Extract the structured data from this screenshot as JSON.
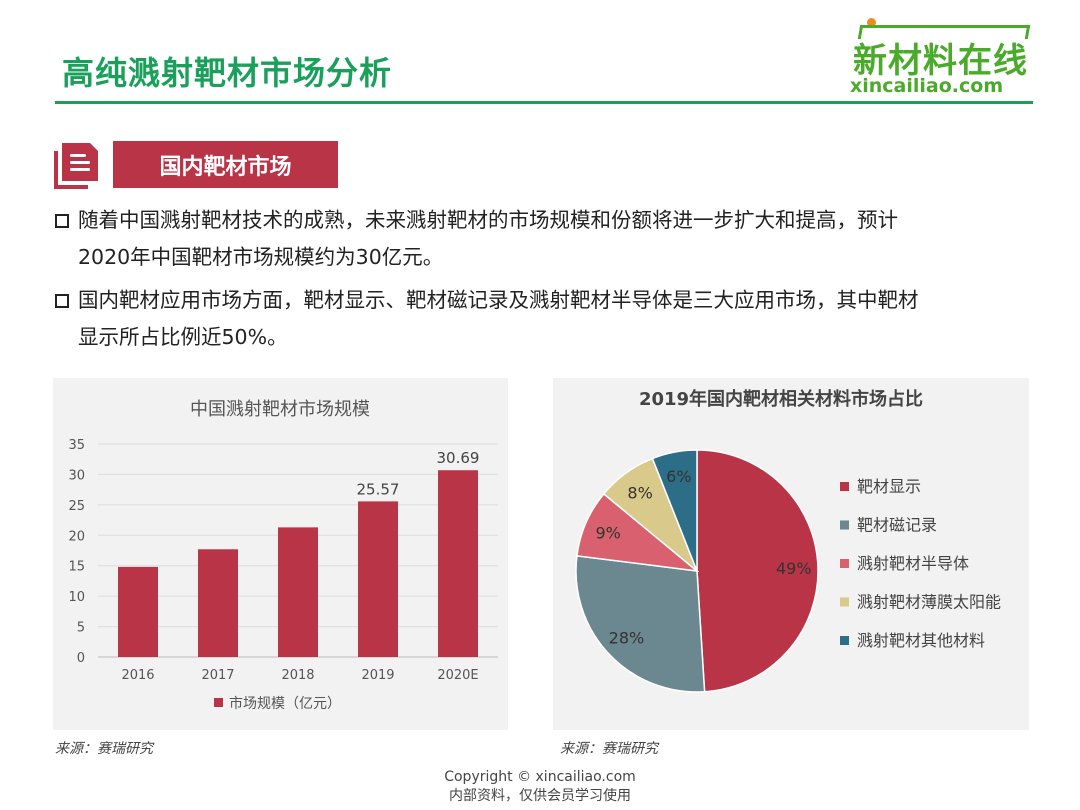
{
  "header": {
    "title": "高纯溅射靶材市场分析",
    "logo_cn": "新材料在线",
    "logo_en": "xincailiao.com"
  },
  "section": {
    "title": "国内靶材市场"
  },
  "bullets": [
    {
      "line1": "随着中国溅射靶材技术的成熟，未来溅射靶材的市场规模和份额将进一步扩大和提高，预计",
      "line2": "2020年中国靶材市场规模约为30亿元。"
    },
    {
      "line1": "国内靶材应用市场方面，靶材显示、靶材磁记录及溅射靶材半导体是三大应用市场，其中靶材",
      "line2": "显示所占比例近50%。"
    }
  ],
  "chart_data": [
    {
      "type": "bar",
      "title": "中国溅射靶材市场规模",
      "categories": [
        "2016",
        "2017",
        "2018",
        "2019",
        "2020E"
      ],
      "values": [
        14.8,
        17.7,
        21.3,
        25.57,
        30.69
      ],
      "data_labels": [
        "",
        "",
        "",
        "25.57",
        "30.69"
      ],
      "ylim": [
        0,
        35
      ],
      "yticks": [
        "0",
        "5",
        "10",
        "15",
        "20",
        "25",
        "30",
        "35"
      ],
      "legend": "市场规模（亿元）",
      "legend_position": "bottom",
      "grid": true,
      "color": "#b93447"
    },
    {
      "type": "pie",
      "title": "2019年国内靶材相关材料市场占比",
      "labels": [
        "靶材显示",
        "靶材磁记录",
        "溅射靶材半导体",
        "溅射靶材薄膜太阳能",
        "溅射靶材其他材料"
      ],
      "values": [
        49,
        28,
        9,
        8,
        6
      ],
      "value_labels": [
        "49%",
        "28%",
        "9%",
        "8%",
        "6%"
      ],
      "colors": [
        "#b93447",
        "#6b8790",
        "#d9606e",
        "#d9c98a",
        "#2c6e87"
      ],
      "legend_position": "right"
    }
  ],
  "sources": [
    "来源：赛瑞研究",
    "来源：赛瑞研究"
  ],
  "footer": {
    "copyright": "Copyright © xincailiao.com",
    "note": "内部资料，仅供会员学习使用"
  }
}
